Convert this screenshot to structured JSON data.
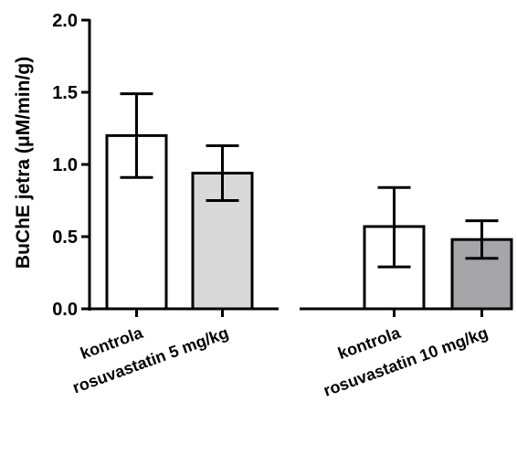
{
  "chart_data": {
    "type": "bar",
    "title": "",
    "xlabel": "",
    "ylabel": "BuChE jetra (μM/min/g)",
    "ylim": [
      0,
      2.0
    ],
    "yticks": [
      {
        "value": 0.0,
        "label": "0.0"
      },
      {
        "value": 0.5,
        "label": "0.5"
      },
      {
        "value": 1.0,
        "label": "1.0"
      },
      {
        "value": 1.5,
        "label": "1.5"
      },
      {
        "value": 2.0,
        "label": "2.0"
      }
    ],
    "grid": false,
    "legend": "none",
    "error_bars": true,
    "groups": [
      {
        "bars": [
          {
            "category": "kontrola",
            "value": 1.2,
            "err_low": 0.91,
            "err_high": 1.49,
            "fill": "#ffffff"
          },
          {
            "category": "rosuvastatin 5 mg/kg",
            "value": 0.94,
            "err_low": 0.75,
            "err_high": 1.13,
            "fill": "#d9d9d9"
          }
        ]
      },
      {
        "bars": [
          {
            "category": "kontrola",
            "value": 0.57,
            "err_low": 0.29,
            "err_high": 0.84,
            "fill": "#ffffff"
          },
          {
            "category": "rosuvastatin 10 mg/kg",
            "value": 0.48,
            "err_low": 0.35,
            "err_high": 0.61,
            "fill": "#a6a6a8"
          }
        ]
      }
    ]
  }
}
